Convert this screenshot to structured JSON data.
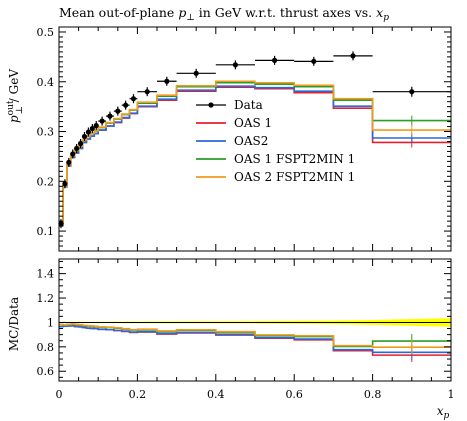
{
  "chart_data": {
    "type": "line",
    "title": "Mean out-of-plane p⊥ in GeV w.r.t. thrust axes vs. xp",
    "title_parts": {
      "pre": "Mean out-of-plane ",
      "p": "p",
      "perp": "⊥",
      "mid": " in GeV w.r.t. thrust axes vs. ",
      "x": "x",
      "sub": "p"
    },
    "xlabel": "xp",
    "xlabel_parts": {
      "x": "x",
      "sub": "p"
    },
    "ylabel": "p⊥out / GeV",
    "ylabel_parts": {
      "p": "p",
      "sup": "out",
      "sub": "⊥",
      "rest": " / GeV"
    },
    "ratio_ylabel": "MC/Data",
    "xlim": [
      0,
      1
    ],
    "ylim": [
      0.06,
      0.51
    ],
    "ratio_ylim": [
      0.52,
      1.52
    ],
    "x_ticks": [
      0,
      0.2,
      0.4,
      0.6,
      0.8,
      1
    ],
    "x_tick_labels": [
      "0",
      "0.2",
      "0.4",
      "0.6",
      "0.8",
      "1"
    ],
    "y_ticks": [
      0.1,
      0.2,
      0.3,
      0.4,
      0.5
    ],
    "y_tick_labels": [
      "0.1",
      "0.2",
      "0.3",
      "0.4",
      "0.5"
    ],
    "ratio_ticks": [
      0.6,
      0.8,
      1.0,
      1.2,
      1.4
    ],
    "ratio_tick_labels": [
      "0.6",
      "0.8",
      "1",
      "1.2",
      "1.4"
    ],
    "legend_position": "center-right",
    "bin_edges": [
      0.0,
      0.01,
      0.02,
      0.03,
      0.04,
      0.05,
      0.06,
      0.07,
      0.08,
      0.09,
      0.1,
      0.12,
      0.14,
      0.16,
      0.18,
      0.2,
      0.25,
      0.3,
      0.4,
      0.5,
      0.6,
      0.7,
      0.8,
      1.0
    ],
    "data": {
      "name": "Data",
      "color": "#000000",
      "x": [
        0.005,
        0.015,
        0.025,
        0.035,
        0.045,
        0.055,
        0.065,
        0.075,
        0.085,
        0.095,
        0.11,
        0.13,
        0.15,
        0.17,
        0.19,
        0.225,
        0.275,
        0.35,
        0.45,
        0.55,
        0.65,
        0.75,
        0.9
      ],
      "y": [
        0.115,
        0.195,
        0.238,
        0.255,
        0.266,
        0.276,
        0.29,
        0.299,
        0.306,
        0.312,
        0.321,
        0.331,
        0.341,
        0.353,
        0.366,
        0.38,
        0.401,
        0.417,
        0.434,
        0.443,
        0.441,
        0.452,
        0.38
      ],
      "yerr": [
        0.002,
        0.002,
        0.002,
        0.002,
        0.002,
        0.002,
        0.002,
        0.002,
        0.002,
        0.002,
        0.002,
        0.002,
        0.002,
        0.002,
        0.002,
        0.002,
        0.002,
        0.003,
        0.003,
        0.004,
        0.005,
        0.008,
        0.01
      ]
    },
    "series": [
      {
        "name": "OAS 1",
        "color": "#e4212b",
        "values": [
          0.111,
          0.189,
          0.231,
          0.248,
          0.257,
          0.266,
          0.278,
          0.285,
          0.291,
          0.296,
          0.303,
          0.311,
          0.318,
          0.327,
          0.336,
          0.35,
          0.363,
          0.381,
          0.389,
          0.386,
          0.378,
          0.347,
          0.278
        ],
        "ratio": [
          0.965,
          0.969,
          0.971,
          0.972,
          0.966,
          0.964,
          0.959,
          0.953,
          0.951,
          0.949,
          0.944,
          0.94,
          0.933,
          0.926,
          0.918,
          0.921,
          0.905,
          0.914,
          0.896,
          0.871,
          0.857,
          0.768,
          0.732
        ]
      },
      {
        "name": "OAS2",
        "color": "#2c68d9",
        "values": [
          0.111,
          0.189,
          0.231,
          0.248,
          0.257,
          0.266,
          0.278,
          0.285,
          0.291,
          0.296,
          0.303,
          0.311,
          0.319,
          0.328,
          0.337,
          0.351,
          0.365,
          0.383,
          0.391,
          0.388,
          0.381,
          0.351,
          0.287
        ],
        "ratio": [
          0.965,
          0.969,
          0.971,
          0.972,
          0.966,
          0.964,
          0.959,
          0.953,
          0.951,
          0.949,
          0.944,
          0.94,
          0.935,
          0.929,
          0.921,
          0.924,
          0.91,
          0.918,
          0.901,
          0.876,
          0.864,
          0.777,
          0.755
        ]
      },
      {
        "name": "OAS 1 FSPT2MIN 1",
        "color": "#2a9d2a",
        "values": [
          0.113,
          0.191,
          0.234,
          0.251,
          0.261,
          0.27,
          0.282,
          0.29,
          0.296,
          0.301,
          0.308,
          0.317,
          0.325,
          0.334,
          0.343,
          0.357,
          0.371,
          0.39,
          0.398,
          0.395,
          0.39,
          0.363,
          0.322
        ],
        "ratio": [
          0.983,
          0.979,
          0.983,
          0.984,
          0.981,
          0.978,
          0.972,
          0.97,
          0.967,
          0.965,
          0.96,
          0.958,
          0.953,
          0.946,
          0.937,
          0.939,
          0.925,
          0.935,
          0.917,
          0.892,
          0.884,
          0.803,
          0.847
        ]
      },
      {
        "name": "OAS 2 FSPT2MIN 1",
        "color": "#f39a1e",
        "values": [
          0.113,
          0.191,
          0.234,
          0.252,
          0.262,
          0.271,
          0.283,
          0.291,
          0.297,
          0.302,
          0.309,
          0.318,
          0.326,
          0.335,
          0.344,
          0.359,
          0.373,
          0.392,
          0.401,
          0.398,
          0.393,
          0.366,
          0.303
        ],
        "ratio": [
          0.983,
          0.979,
          0.983,
          0.988,
          0.985,
          0.982,
          0.976,
          0.973,
          0.971,
          0.968,
          0.963,
          0.961,
          0.956,
          0.949,
          0.94,
          0.945,
          0.93,
          0.94,
          0.924,
          0.898,
          0.891,
          0.81,
          0.797
        ]
      }
    ],
    "ratio_band": {
      "color": "#ffff00",
      "x": [
        0.0,
        0.5,
        0.7,
        0.8,
        1.0
      ],
      "lo": [
        0.995,
        0.99,
        0.985,
        0.98,
        0.965
      ],
      "hi": [
        1.005,
        1.01,
        1.015,
        1.02,
        1.035
      ]
    }
  }
}
